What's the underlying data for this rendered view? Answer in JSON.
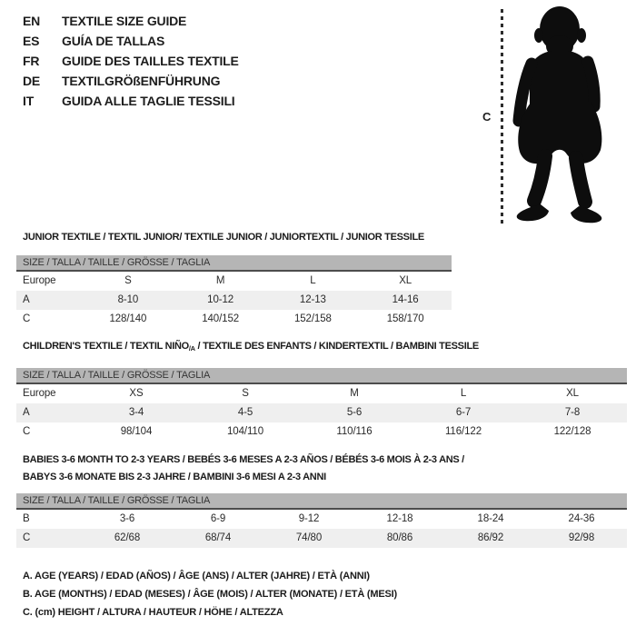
{
  "title_block": {
    "languages": [
      {
        "code": "EN",
        "label": "TEXTILE SIZE GUIDE"
      },
      {
        "code": "ES",
        "label": "GUÍA DE TALLAS"
      },
      {
        "code": "FR",
        "label": "GUIDE DES TAILLES TEXTILE"
      },
      {
        "code": "DE",
        "label": "TEXTILGRÖßENFÜHRUNG"
      },
      {
        "code": "IT",
        "label": "GUIDA ALLE TAGLIE TESSILI"
      }
    ]
  },
  "figure": {
    "image": "toddler-silhouette",
    "height_label": "C"
  },
  "sections": [
    {
      "title_lines": [
        {
          "pre": "JUNIOR TEXTILE / TEXTIL JUNIOR/ TEXTILE JUNIOR / JUNIORTEXTIL / JUNIOR TESSILE",
          "sub": "",
          "post": ""
        }
      ],
      "size_bar": "SIZE / TALLA / TAILLE / GRÖSSE / TAGLIA",
      "rows": [
        {
          "label": "Europe",
          "values": [
            "S",
            "M",
            "L",
            "XL"
          ],
          "shaded": false
        },
        {
          "label": "A",
          "values": [
            "8-10",
            "10-12",
            "12-13",
            "14-16"
          ],
          "shaded": true
        },
        {
          "label": "C",
          "values": [
            "128/140",
            "140/152",
            "152/158",
            "158/170"
          ],
          "shaded": false
        }
      ]
    },
    {
      "title_lines": [
        {
          "pre": "CHILDREN'S TEXTILE / TEXTIL NIÑO",
          "sub": "/A",
          "post": " / TEXTILE DES ENFANTS / KINDERTEXTIL / BAMBINI TESSILE"
        }
      ],
      "size_bar": "SIZE / TALLA / TAILLE / GRÖSSE / TAGLIA",
      "rows": [
        {
          "label": "Europe",
          "values": [
            "XS",
            "S",
            "M",
            "L",
            "XL"
          ],
          "shaded": false
        },
        {
          "label": "A",
          "values": [
            "3-4",
            "4-5",
            "5-6",
            "6-7",
            "7-8"
          ],
          "shaded": true
        },
        {
          "label": "C",
          "values": [
            "98/104",
            "104/110",
            "110/116",
            "116/122",
            "122/128"
          ],
          "shaded": false
        }
      ]
    },
    {
      "title_lines": [
        {
          "pre": "BABIES 3-6 MONTH TO 2-3 YEARS / BEBÉS 3-6 MESES A 2-3 AÑOS / BÉBÉS 3-6 MOIS À 2-3 ANS /",
          "sub": "",
          "post": ""
        },
        {
          "pre": "BABYS 3-6 MONATE BIS 2-3 JAHRE / BAMBINI 3-6 MESI A 2-3 ANNI",
          "sub": "",
          "post": ""
        }
      ],
      "size_bar": "SIZE / TALLA / TAILLE / GRÖSSE / TAGLIA",
      "rows": [
        {
          "label": "B",
          "values": [
            "3-6",
            "6-9",
            "9-12",
            "12-18",
            "18-24",
            "24-36"
          ],
          "shaded": false
        },
        {
          "label": "C",
          "values": [
            "62/68",
            "68/74",
            "74/80",
            "80/86",
            "86/92",
            "92/98"
          ],
          "shaded": true
        }
      ]
    }
  ],
  "legend": {
    "lines": [
      "A. AGE (YEARS) / EDAD (AÑOS) / ÂGE (ANS) / ALTER (JAHRE) / ETÀ (ANNI)",
      "B. AGE (MONTHS) / EDAD (MESES) / ÂGE (MOIS) / ALTER (MONATE) / ETÀ (MESI)",
      "C. (cm) HEIGHT / ALTURA / HAUTEUR / HÖHE / ALTEZZA"
    ]
  },
  "colors": {
    "bar_gray": "#b5b5b5",
    "row_shade": "#efefef",
    "ink": "#1d1d1d",
    "silhouette": "#0d0d0d"
  }
}
